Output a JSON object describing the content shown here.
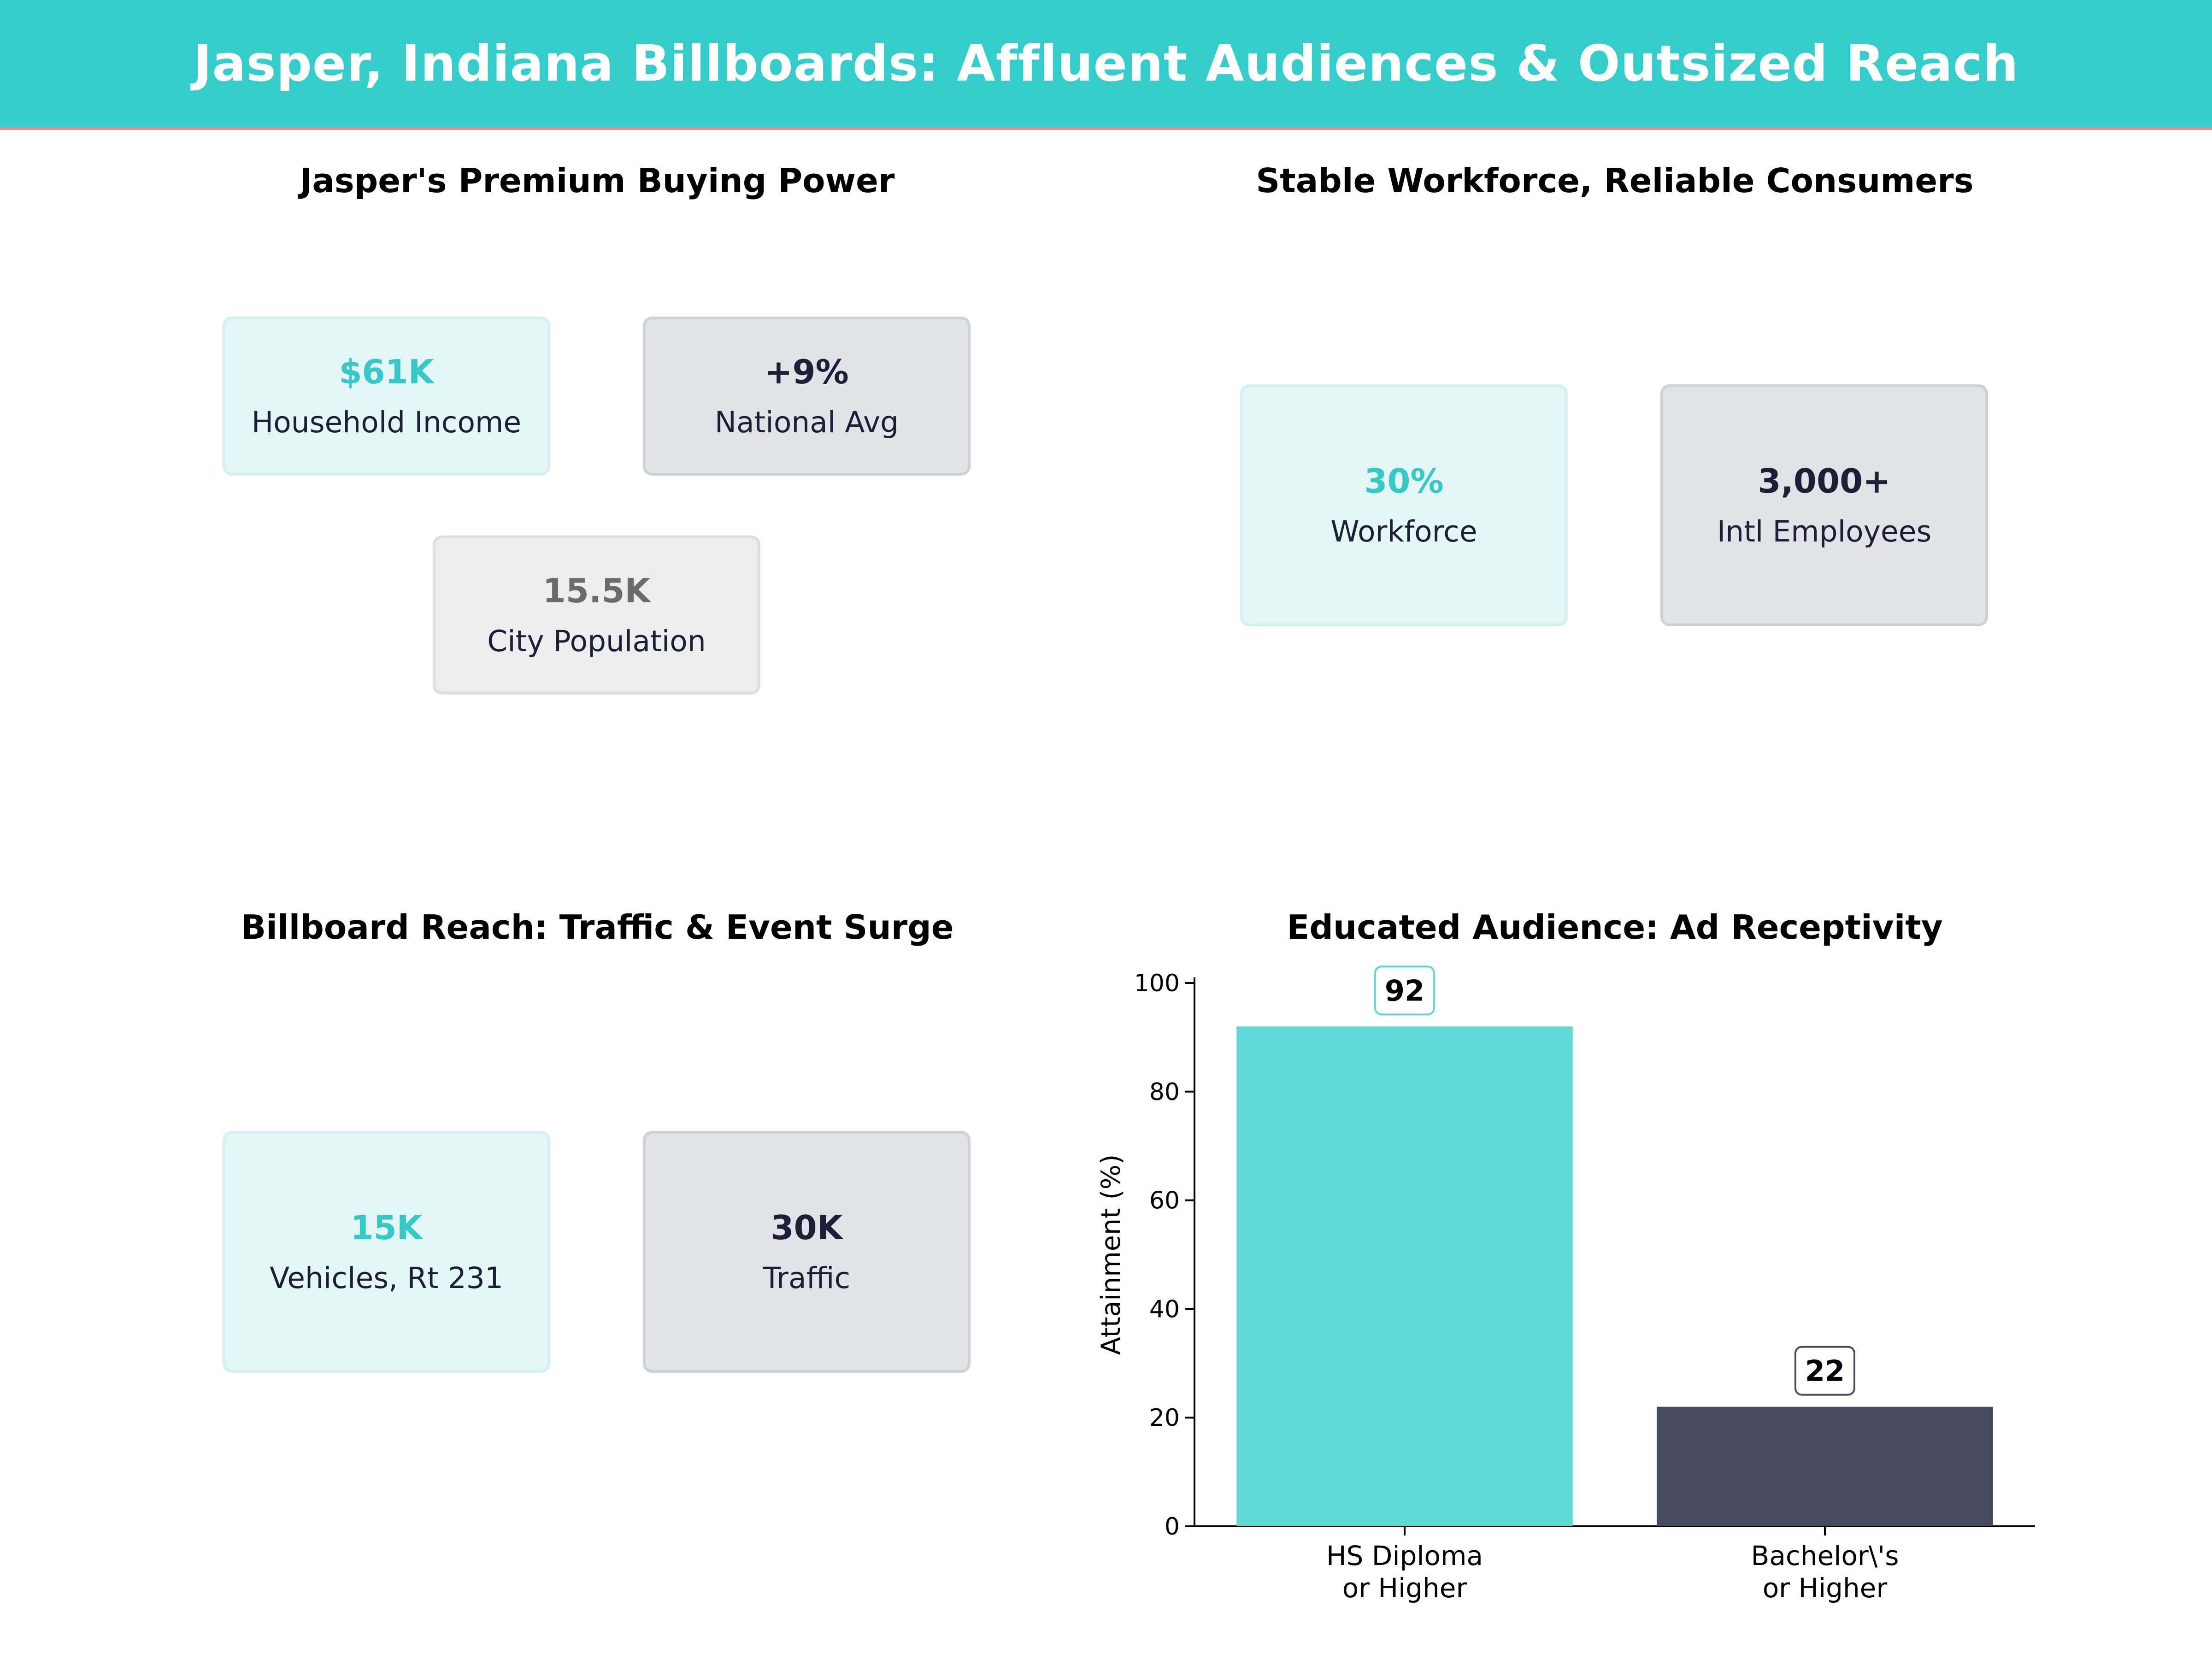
{
  "header": {
    "title": "Jasper, Indiana Billboards: Affluent Audiences & Outsized Reach"
  },
  "panels": {
    "buying_power": {
      "title": "Jasper's Premium Buying Power",
      "cards": [
        {
          "value": "$61K",
          "label": "Household Income",
          "style": "teal"
        },
        {
          "value": "+9%",
          "label": "National Avg",
          "style": "slate"
        },
        {
          "value": "15.5K",
          "label": "City Population",
          "style": "grey"
        }
      ]
    },
    "workforce": {
      "title": "Stable Workforce, Reliable Consumers",
      "cards": [
        {
          "value": "30%",
          "label": "Workforce",
          "style": "teal"
        },
        {
          "value": "3,000+",
          "label": "Intl Employees",
          "style": "slate"
        }
      ]
    },
    "reach": {
      "title": "Billboard Reach: Traffic & Event Surge",
      "cards": [
        {
          "value": "15K",
          "label": "Vehicles, Rt 231",
          "style": "teal"
        },
        {
          "value": "30K",
          "label": "Traffic",
          "style": "slate"
        }
      ]
    },
    "education": {
      "title": "Educated Audience: Ad Receptivity"
    }
  },
  "colors": {
    "accent": "#35cccc",
    "bar_primary": "#5fd8d6",
    "bar_secondary": "#454a60",
    "header_rule": "#ef8a8a"
  },
  "chart_data": {
    "type": "bar",
    "title": "Educated Audience: Ad Receptivity",
    "categories": [
      [
        "HS Diploma",
        "or Higher"
      ],
      [
        "Bachelor\\'s",
        "or Higher"
      ]
    ],
    "values": [
      92,
      22
    ],
    "data_labels": [
      "92",
      "22"
    ],
    "xlabel": "",
    "ylabel": "Attainment (%)",
    "ylim": [
      0,
      100
    ],
    "yticks": [
      0,
      20,
      40,
      60,
      80,
      100
    ],
    "grid": false,
    "legend": "none"
  }
}
